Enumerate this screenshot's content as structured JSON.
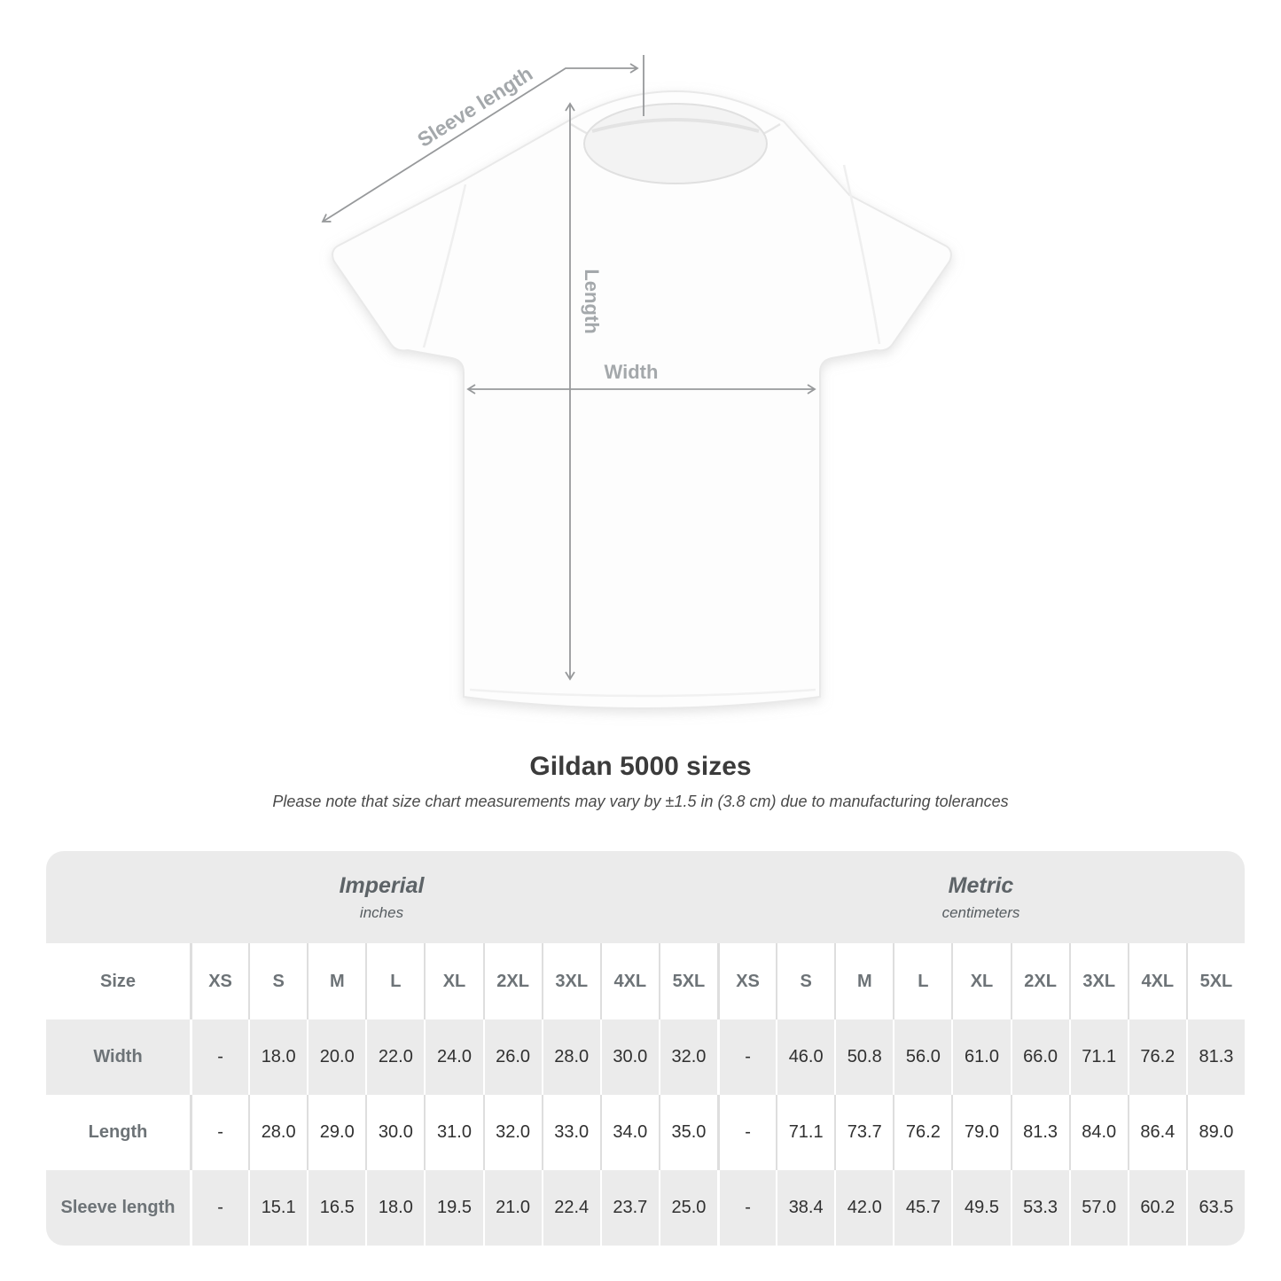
{
  "diagram": {
    "sleeve_length_label": "Sleeve length",
    "length_label": "Length",
    "width_label": "Width",
    "line_color": "#97999b",
    "label_color": "#a4a8ab"
  },
  "title": "Gildan 5000 sizes",
  "subtitle": "Please note that size chart measurements may vary by ±1.5 in (3.8 cm) due to manufacturing tolerances",
  "chart_data": {
    "type": "table",
    "title": "Gildan 5000 sizes",
    "note": "Please note that size chart measurements may vary by ±1.5 in (3.8 cm) due to manufacturing tolerances",
    "corner_label": "Size",
    "groups": [
      {
        "label": "Imperial",
        "sublabel": "inches"
      },
      {
        "label": "Metric",
        "sublabel": "centimeters"
      }
    ],
    "sizes": [
      "XS",
      "S",
      "M",
      "L",
      "XL",
      "2XL",
      "3XL",
      "4XL",
      "5XL"
    ],
    "rows": [
      {
        "label": "Width",
        "imperial": [
          "-",
          "18.0",
          "20.0",
          "22.0",
          "24.0",
          "26.0",
          "28.0",
          "30.0",
          "32.0"
        ],
        "metric": [
          "-",
          "46.0",
          "50.8",
          "56.0",
          "61.0",
          "66.0",
          "71.1",
          "76.2",
          "81.3"
        ]
      },
      {
        "label": "Length",
        "imperial": [
          "-",
          "28.0",
          "29.0",
          "30.0",
          "31.0",
          "32.0",
          "33.0",
          "34.0",
          "35.0"
        ],
        "metric": [
          "-",
          "71.1",
          "73.7",
          "76.2",
          "79.0",
          "81.3",
          "84.0",
          "86.4",
          "89.0"
        ]
      },
      {
        "label": "Sleeve length",
        "imperial": [
          "-",
          "15.1",
          "16.5",
          "18.0",
          "19.5",
          "21.0",
          "22.4",
          "23.7",
          "25.0"
        ],
        "metric": [
          "-",
          "38.4",
          "42.0",
          "45.7",
          "49.5",
          "53.3",
          "57.0",
          "60.2",
          "63.5"
        ]
      }
    ],
    "colors": {
      "band_bg": "#ebebeb",
      "row_alt_bg": "#ebebeb",
      "row_bg": "#ffffff",
      "header_text": "#6d7377",
      "value_text": "#303030"
    }
  }
}
